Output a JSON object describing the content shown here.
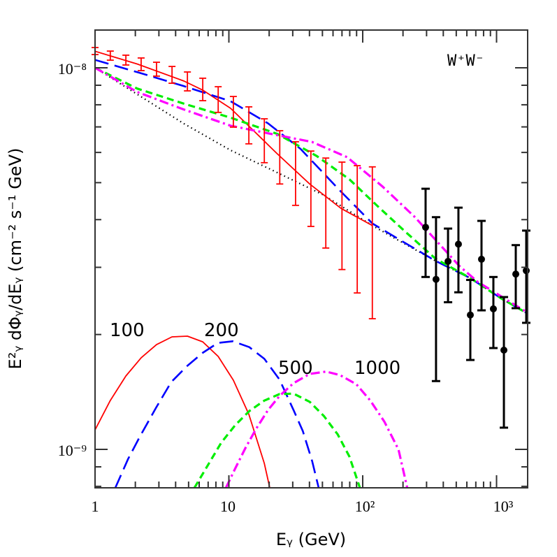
{
  "chart_data": {
    "type": "line",
    "xlabel": "Eᵧ (GeV)",
    "ylabel": "E²ᵧ dΦᵧ/dEᵧ (cm⁻² s⁻¹ GeV)",
    "x_scale": "log",
    "y_scale": "log",
    "xlim": [
      1,
      1660
    ],
    "ylim": [
      7.9e-10,
      1.26e-08
    ],
    "x_ticks": [
      {
        "value": 1,
        "label": "1"
      },
      {
        "value": 10,
        "label": "10"
      },
      {
        "value": 100,
        "label": "10²"
      },
      {
        "value": 1000,
        "label": "10³"
      }
    ],
    "y_ticks": [
      {
        "value": 1e-08,
        "label": "10⁻⁸"
      },
      {
        "value": 1e-09,
        "label": "10⁻⁹"
      }
    ],
    "channel_label": "W⁺W⁻",
    "grid": false,
    "colors": {
      "m100": "#ff0000",
      "m200": "#0000ff",
      "m500": "#00ee00",
      "m1000": "#ff00ff",
      "background": "#000000",
      "data": "#000000"
    },
    "total_curves": [
      {
        "id": "background",
        "style": "dotted",
        "color": "#000000",
        "x": [
          1,
          2.07,
          4.61,
          10.3,
          23.1,
          51.0,
          118,
          177,
          349,
          637,
          1077,
          1667
        ],
        "y": [
          1e-08,
          8.52e-09,
          7.14e-09,
          6.08e-09,
          5.31e-09,
          4.64e-09,
          3.86e-09,
          3.56e-09,
          3.12e-09,
          2.81e-09,
          2.49e-09,
          2.28e-09
        ]
      },
      {
        "id": "m100",
        "style": "solid",
        "color": "#ff0000",
        "x": [
          1,
          2.07,
          4.62,
          6.37,
          10.3,
          23.0,
          40.2,
          68.9,
          118
        ],
        "y": [
          1.105e-08,
          1.023e-08,
          9.23e-09,
          8.74e-09,
          7.83e-09,
          5.95e-09,
          4.96e-09,
          4.28e-09,
          3.86e-09
        ]
      },
      {
        "id": "m200",
        "style": "longdash",
        "color": "#0000ff",
        "x": [
          1,
          2.07,
          4.62,
          10.3,
          19.6,
          34.3,
          67.8,
          118,
          177,
          349,
          637,
          1077,
          1667
        ],
        "y": [
          1.049e-08,
          9.74e-09,
          8.95e-09,
          8.17e-09,
          7.15e-09,
          6.13e-09,
          4.76e-09,
          3.91e-09,
          3.59e-09,
          3.12e-09,
          2.81e-09,
          2.49e-09,
          2.28e-09
        ]
      },
      {
        "id": "m500",
        "style": "shortdash",
        "color": "#00ee00",
        "x": [
          1,
          2.07,
          4.62,
          10.3,
          23.0,
          45.4,
          79.6,
          129,
          208,
          350,
          637,
          1077,
          1667
        ],
        "y": [
          1e-08,
          8.82e-09,
          8.05e-09,
          7.4e-09,
          6.71e-09,
          5.87e-09,
          5.1e-09,
          4.34e-09,
          3.72e-09,
          3.16e-09,
          2.81e-09,
          2.49e-09,
          2.28e-09
        ]
      },
      {
        "id": "m1000",
        "style": "dashdot",
        "color": "#ff00ff",
        "x": [
          1,
          2.07,
          4.62,
          10.3,
          23.0,
          41.9,
          76.5,
          140,
          244,
          350,
          524,
          721,
          1673
        ],
        "y": [
          1e-08,
          8.64e-09,
          7.77e-09,
          7.05e-09,
          6.66e-09,
          6.39e-09,
          5.83e-09,
          4.89e-09,
          4.07e-09,
          3.54e-09,
          3.03e-09,
          2.75e-09,
          2.29e-09
        ]
      }
    ],
    "signal_curves": [
      {
        "id": "m100",
        "label": "100",
        "style": "solid",
        "color": "#ff0000",
        "x": [
          1,
          1.3,
          1.7,
          2.21,
          2.88,
          3.76,
          4.9,
          6.38,
          8.32,
          10.8,
          14.1,
          18.4,
          20.2
        ],
        "y": [
          1.125e-09,
          1.343e-09,
          1.557e-09,
          1.738e-09,
          1.882e-09,
          1.972e-09,
          1.98e-09,
          1.914e-09,
          1.752e-09,
          1.518e-09,
          1.235e-09,
          9.19e-10,
          7.93e-10
        ]
      },
      {
        "id": "m200",
        "label": "200",
        "style": "longdash",
        "color": "#0000ff",
        "x": [
          1.417,
          1.766,
          2.159,
          2.857,
          3.709,
          4.91,
          6.37,
          8.27,
          10.7,
          14.2,
          18.4,
          23.9,
          30.4,
          35.7,
          41.9,
          46.9
        ],
        "y": [
          7.93e-10,
          9.44e-10,
          1.079e-09,
          1.286e-09,
          1.501e-09,
          1.657e-09,
          1.79e-09,
          1.901e-09,
          1.92e-09,
          1.853e-09,
          1.727e-09,
          1.523e-09,
          1.268e-09,
          1.117e-09,
          9.31e-10,
          7.93e-10
        ]
      },
      {
        "id": "m500",
        "label": "500",
        "style": "shortdash",
        "color": "#00ee00",
        "x": [
          5.53,
          6.91,
          8.78,
          11.17,
          14.2,
          18.4,
          23.9,
          30.4,
          40.2,
          51.2,
          65.1,
          79.6,
          95.3
        ],
        "y": [
          7.93e-10,
          9.05e-10,
          1.042e-09,
          1.158e-09,
          1.26e-09,
          1.342e-09,
          1.396e-09,
          1.4e-09,
          1.332e-09,
          1.224e-09,
          1.094e-09,
          9.57e-10,
          7.93e-10
        ]
      },
      {
        "id": "m1000",
        "label": "1000",
        "style": "dashdot",
        "color": "#ff00ff",
        "x": [
          9.51,
          11.17,
          13.4,
          16.0,
          19.6,
          23.9,
          30.4,
          40.2,
          53.3,
          67.8,
          89.7,
          114,
          145,
          185,
          215
        ],
        "y": [
          7.93e-10,
          8.92e-10,
          1.013e-09,
          1.133e-09,
          1.268e-09,
          1.38e-09,
          1.491e-09,
          1.577e-09,
          1.599e-09,
          1.565e-09,
          1.481e-09,
          1.342e-09,
          1.183e-09,
          9.99e-10,
          7.93e-10
        ]
      }
    ],
    "projected_errors": {
      "color": "#ff0000",
      "x": [
        1,
        1.3,
        1.7,
        2.21,
        2.88,
        3.76,
        4.9,
        6.38,
        8.32,
        10.8,
        14.1,
        18.4,
        24.0,
        31.5,
        41.0,
        53.0,
        70.0,
        91.0,
        118
      ],
      "y": [
        1.106e-08,
        1.077e-08,
        1.047e-08,
        1.021e-08,
        9.92e-09,
        9.59e-09,
        9.21e-09,
        8.77e-09,
        8.31e-09,
        7.73e-09,
        7.11e-09,
        6.48e-09,
        5.9e-09,
        5.4e-09,
        4.94e-09,
        4.58e-09,
        4.28e-09,
        4.06e-09,
        3.86e-09
      ],
      "y_low": [
        1.083e-08,
        1.047e-08,
        1.017e-08,
        9.83e-09,
        9.51e-09,
        9.11e-09,
        8.7e-09,
        8.2e-09,
        7.64e-09,
        6.99e-09,
        6.32e-09,
        5.64e-09,
        4.96e-09,
        4.36e-09,
        3.84e-09,
        3.37e-09,
        2.96e-09,
        2.57e-09,
        2.2e-09
      ],
      "y_high": [
        1.13e-08,
        1.106e-08,
        1.079e-08,
        1.061e-08,
        1.034e-08,
        1.008e-08,
        9.75e-09,
        9.39e-09,
        8.92e-09,
        8.41e-09,
        7.9e-09,
        7.35e-09,
        6.84e-09,
        6.4e-09,
        6.05e-09,
        5.8e-09,
        5.66e-09,
        5.54e-09,
        5.5e-09
      ]
    },
    "measured_data": {
      "color": "#000000",
      "x": [
        295,
        353,
        434,
        519,
        637,
        772,
        947,
        1135,
        1392,
        1667
      ],
      "y": [
        3.82e-09,
        2.79e-09,
        3.11e-09,
        3.45e-09,
        2.25e-09,
        3.15e-09,
        2.335e-09,
        1.82e-09,
        2.88e-09,
        2.94e-09
      ],
      "y_low": [
        2.83e-09,
        1.51e-09,
        2.43e-09,
        2.58e-09,
        1.715e-09,
        2.314e-09,
        1.843e-09,
        1.14e-09,
        2.344e-09,
        2.146e-09
      ],
      "y_high": [
        4.82e-09,
        4.06e-09,
        3.79e-09,
        4.3e-09,
        2.78e-09,
        3.97e-09,
        2.83e-09,
        2.507e-09,
        3.43e-09,
        3.744e-09
      ]
    }
  }
}
